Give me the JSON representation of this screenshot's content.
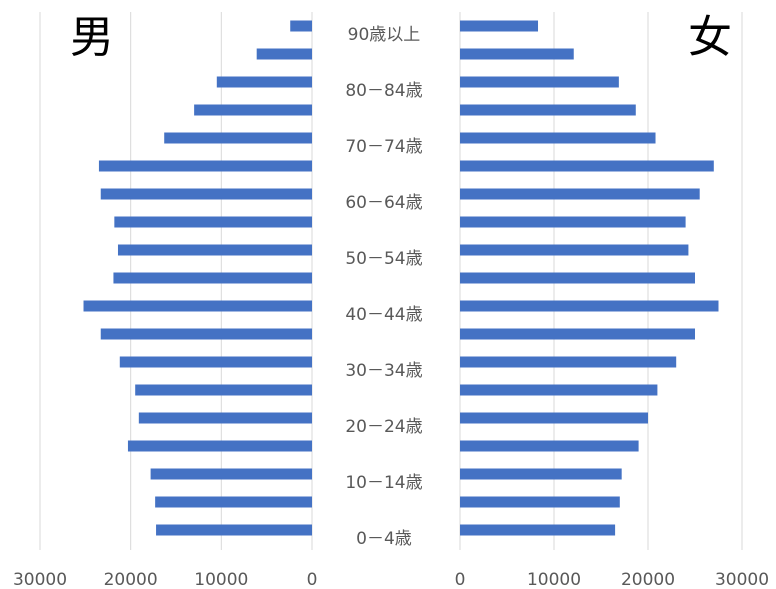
{
  "chart_data": {
    "type": "bar",
    "orientation": "horizontal",
    "layout": "population-pyramid",
    "grid": true,
    "bar_color": "#4472C4",
    "age_labels": [
      "0－4歳",
      "",
      "10－14歳",
      "",
      "20－24歳",
      "",
      "30－34歳",
      "",
      "40－44歳",
      "",
      "50－54歳",
      "",
      "60－64歳",
      "",
      "70－74歳",
      "",
      "80－84歳",
      "",
      "90歳以上"
    ],
    "series": [
      {
        "name": "男",
        "values": [
          17200,
          17300,
          17800,
          20300,
          19100,
          19500,
          21200,
          23300,
          25200,
          21900,
          21400,
          21800,
          23300,
          23500,
          16300,
          13000,
          10500,
          6100,
          2400
        ],
        "xlim": [
          0,
          30000
        ],
        "xticks": [
          "30000",
          "20000",
          "10000",
          "0"
        ]
      },
      {
        "name": "女",
        "values": [
          16500,
          17000,
          17200,
          19000,
          20000,
          21000,
          23000,
          25000,
          27500,
          25000,
          24300,
          24000,
          25500,
          27000,
          20800,
          18700,
          16900,
          12100,
          8300
        ],
        "xlim": [
          0,
          30000
        ],
        "xticks": [
          "0",
          "10000",
          "20000",
          "30000"
        ]
      }
    ]
  }
}
